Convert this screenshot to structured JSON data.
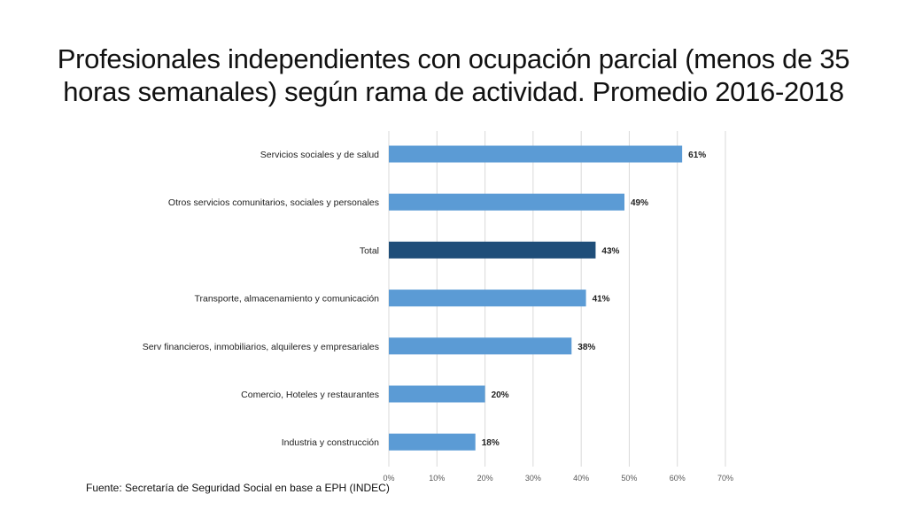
{
  "slide": {
    "title_line1": "Profesionales independientes con ocupación parcial (menos de 35",
    "title_line2": "horas semanales) según rama de actividad. Promedio 2016-2018",
    "source": "Fuente: Secretaría de Seguridad Social en base a EPH (INDEC)"
  },
  "chart_data": {
    "type": "bar",
    "orientation": "horizontal",
    "title": "",
    "xlabel": "",
    "ylabel": "",
    "categories": [
      "Servicios sociales y de salud",
      "Otros servicios comunitarios, sociales y personales",
      "Total",
      "Transporte, almacenamiento y comunicación",
      "Serv financieros, inmobiliarios, alquileres y empresariales",
      "Comercio, Hoteles y restaurantes",
      "Industria y construcción"
    ],
    "values": [
      61,
      49,
      43,
      41,
      38,
      20,
      18
    ],
    "value_labels": [
      "61%",
      "49%",
      "43%",
      "41%",
      "38%",
      "20%",
      "18%"
    ],
    "highlight_category": "Total",
    "xlim": [
      0,
      70
    ],
    "xticks": [
      "0%",
      "10%",
      "20%",
      "30%",
      "40%",
      "50%",
      "60%",
      "70%"
    ],
    "grid": true,
    "legend": "none",
    "colors": {
      "bar": "#5b9bd5",
      "highlight": "#1f4e79",
      "grid": "#d9d9d9",
      "text": "#222222"
    }
  }
}
